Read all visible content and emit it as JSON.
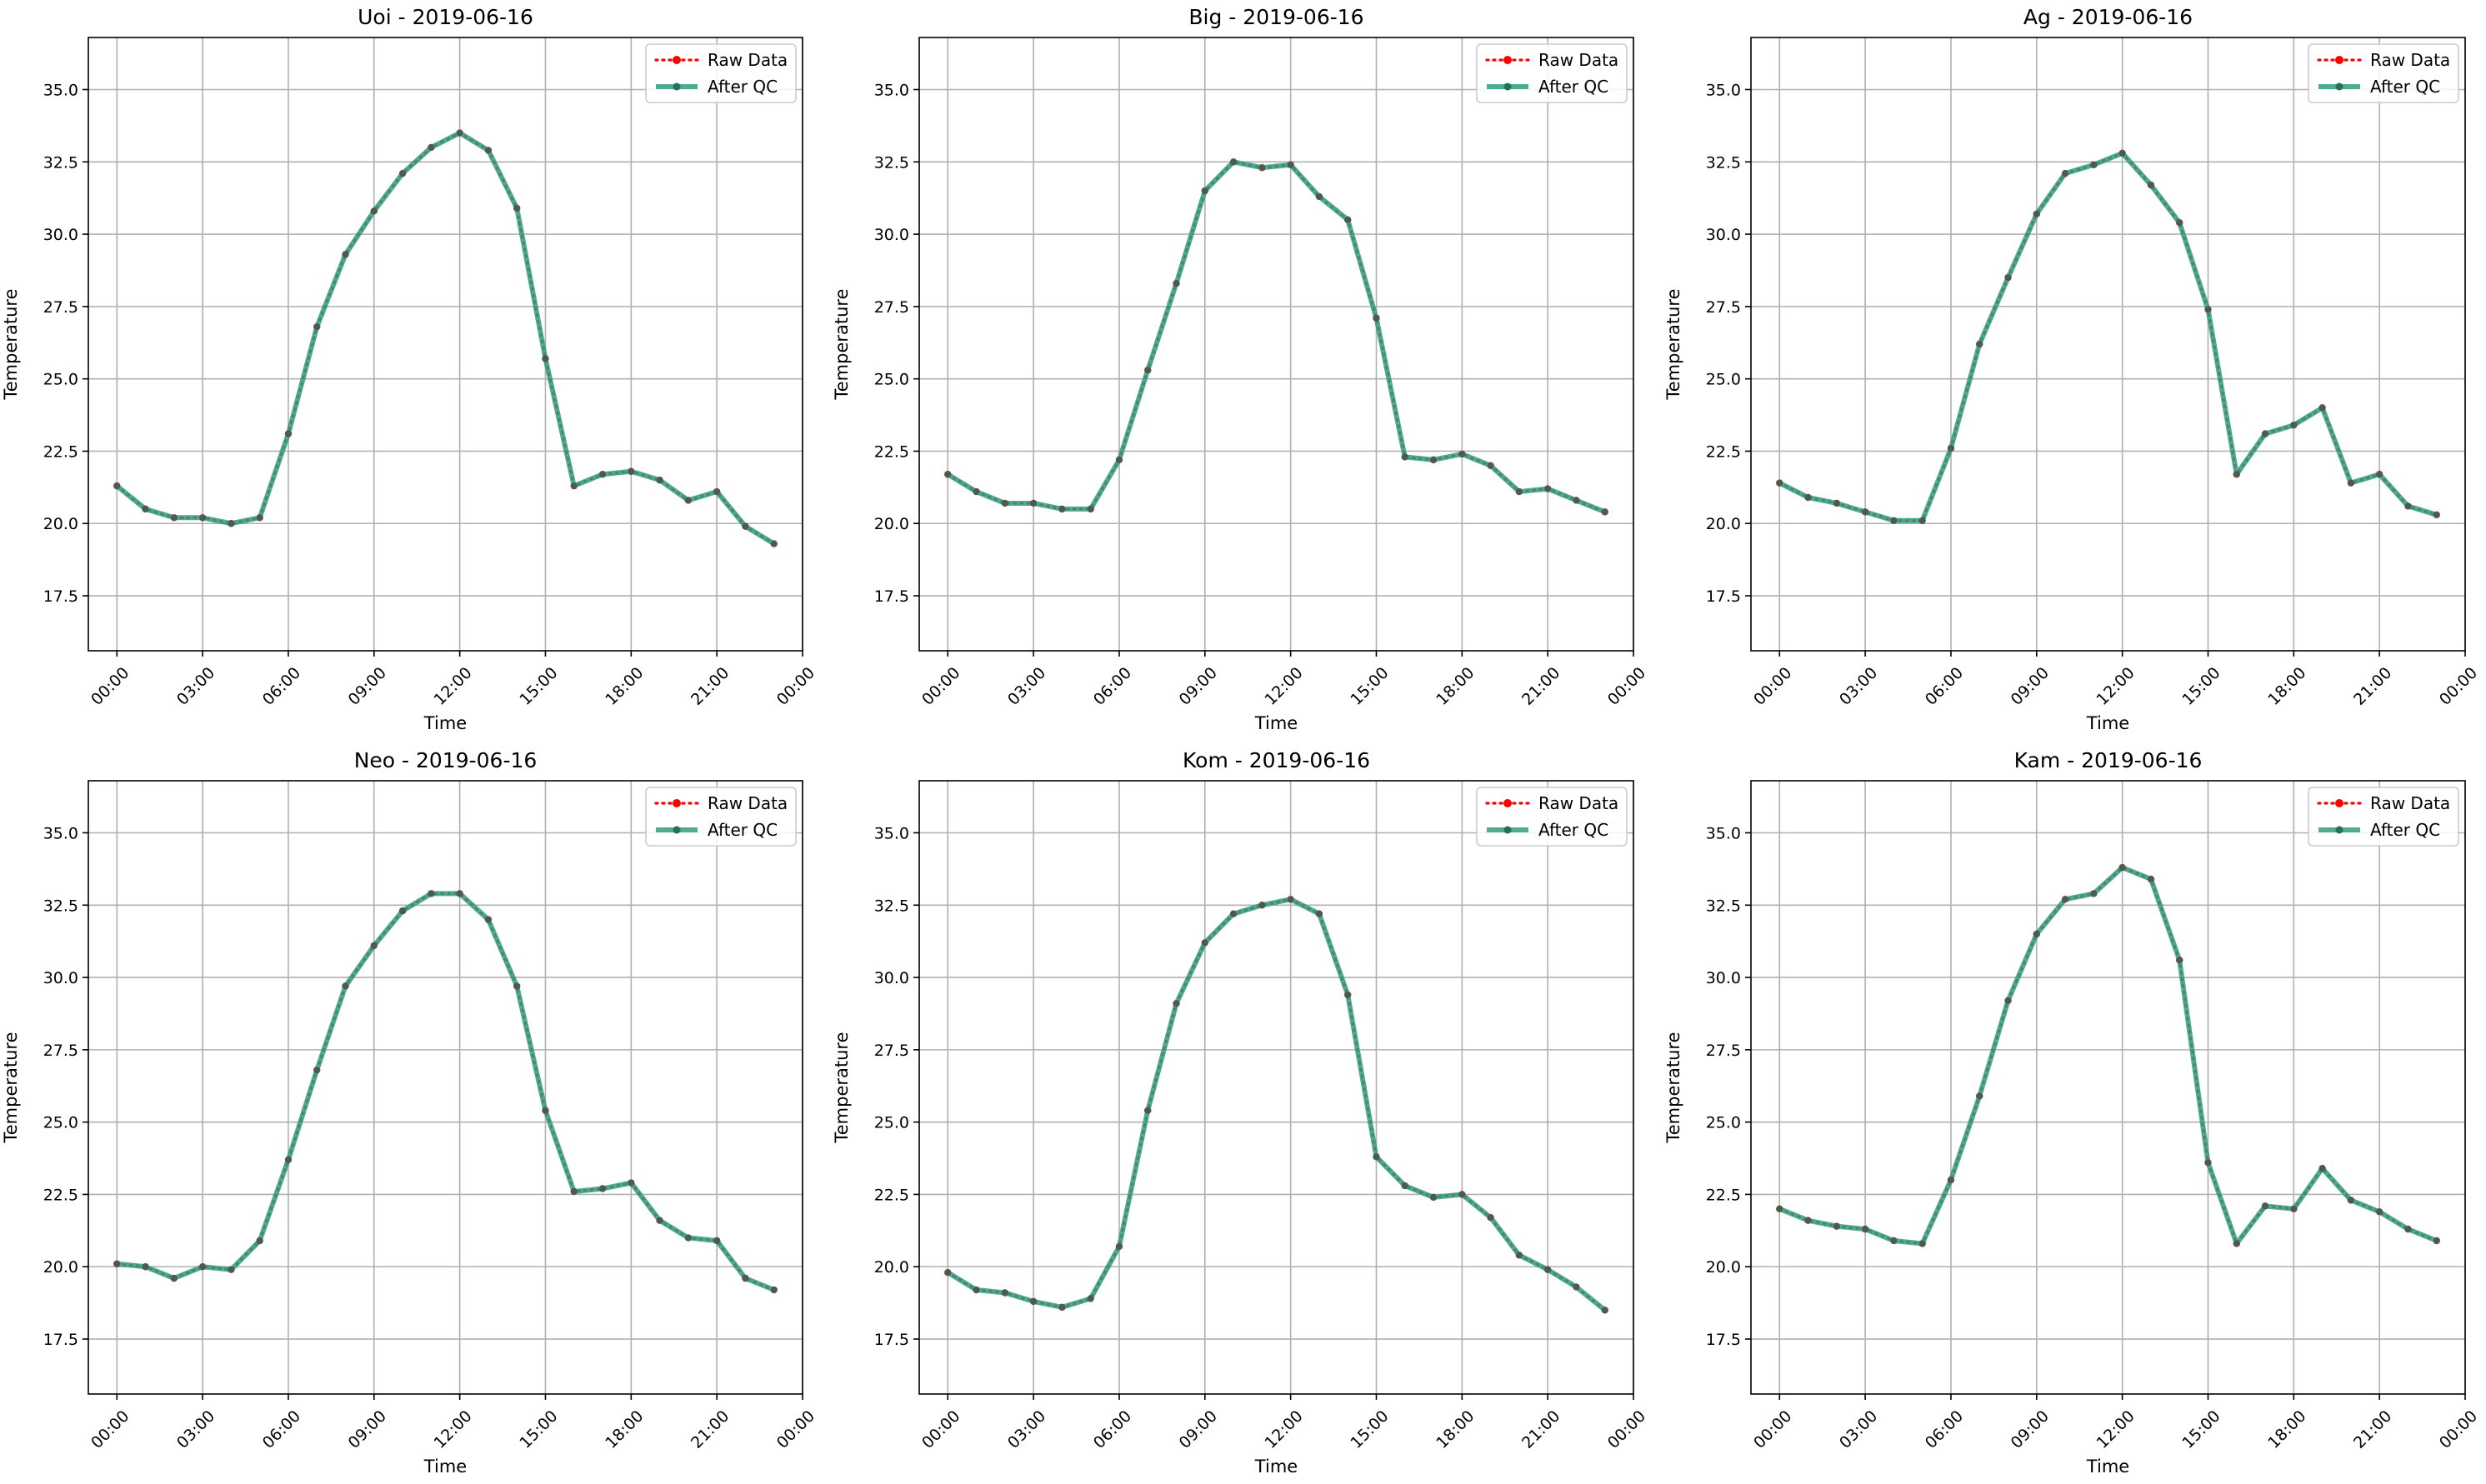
{
  "chart_data": [
    {
      "type": "line",
      "title": "Uoi - 2019-06-16",
      "xlabel": "Time",
      "ylabel": "Temperature",
      "hours": [
        0,
        1,
        2,
        3,
        4,
        5,
        6,
        7,
        8,
        9,
        10,
        11,
        12,
        13,
        14,
        15,
        16,
        17,
        18,
        19,
        20,
        21,
        22,
        23
      ],
      "xticks": [
        "00:00",
        "03:00",
        "06:00",
        "09:00",
        "12:00",
        "15:00",
        "18:00",
        "21:00",
        "00:00"
      ],
      "yticks": [
        "17.5",
        "20.0",
        "22.5",
        "25.0",
        "27.5",
        "30.0",
        "32.5",
        "35.0"
      ],
      "ylim": [
        15.6,
        36.8
      ],
      "grid": true,
      "legend_position": "top-right",
      "series": [
        {
          "name": "Raw Data",
          "color": "#ff0000",
          "values": [
            21.3,
            20.5,
            20.2,
            20.2,
            20.0,
            20.2,
            23.1,
            26.8,
            29.3,
            30.8,
            32.1,
            33.0,
            33.5,
            32.9,
            30.9,
            25.7,
            21.3,
            21.7,
            21.8,
            21.5,
            20.8,
            21.1,
            19.9,
            19.3
          ]
        },
        {
          "name": "After QC",
          "color": "#2e9e7f",
          "values": [
            21.3,
            20.5,
            20.2,
            20.2,
            20.0,
            20.2,
            23.1,
            26.8,
            29.3,
            30.8,
            32.1,
            33.0,
            33.5,
            32.9,
            30.9,
            25.7,
            21.3,
            21.7,
            21.8,
            21.5,
            20.8,
            21.1,
            19.9,
            19.3
          ]
        }
      ]
    },
    {
      "type": "line",
      "title": "Big - 2019-06-16",
      "xlabel": "Time",
      "ylabel": "Temperature",
      "hours": [
        0,
        1,
        2,
        3,
        4,
        5,
        6,
        7,
        8,
        9,
        10,
        11,
        12,
        13,
        14,
        15,
        16,
        17,
        18,
        19,
        20,
        21,
        22,
        23
      ],
      "xticks": [
        "00:00",
        "03:00",
        "06:00",
        "09:00",
        "12:00",
        "15:00",
        "18:00",
        "21:00",
        "00:00"
      ],
      "yticks": [
        "17.5",
        "20.0",
        "22.5",
        "25.0",
        "27.5",
        "30.0",
        "32.5",
        "35.0"
      ],
      "ylim": [
        15.6,
        36.8
      ],
      "grid": true,
      "legend_position": "top-right",
      "series": [
        {
          "name": "Raw Data",
          "color": "#ff0000",
          "values": [
            21.7,
            21.1,
            20.7,
            20.7,
            20.5,
            20.5,
            22.2,
            25.3,
            28.3,
            31.5,
            32.5,
            32.3,
            32.4,
            31.3,
            30.5,
            27.1,
            22.3,
            22.2,
            22.4,
            22.0,
            21.1,
            21.2,
            20.8,
            20.4
          ]
        },
        {
          "name": "After QC",
          "color": "#2e9e7f",
          "values": [
            21.7,
            21.1,
            20.7,
            20.7,
            20.5,
            20.5,
            22.2,
            25.3,
            28.3,
            31.5,
            32.5,
            32.3,
            32.4,
            31.3,
            30.5,
            27.1,
            22.3,
            22.2,
            22.4,
            22.0,
            21.1,
            21.2,
            20.8,
            20.4
          ]
        }
      ]
    },
    {
      "type": "line",
      "title": "Ag - 2019-06-16",
      "xlabel": "Time",
      "ylabel": "Temperature",
      "hours": [
        0,
        1,
        2,
        3,
        4,
        5,
        6,
        7,
        8,
        9,
        10,
        11,
        12,
        13,
        14,
        15,
        16,
        17,
        18,
        19,
        20,
        21,
        22,
        23
      ],
      "xticks": [
        "00:00",
        "03:00",
        "06:00",
        "09:00",
        "12:00",
        "15:00",
        "18:00",
        "21:00",
        "00:00"
      ],
      "yticks": [
        "17.5",
        "20.0",
        "22.5",
        "25.0",
        "27.5",
        "30.0",
        "32.5",
        "35.0"
      ],
      "ylim": [
        15.6,
        36.8
      ],
      "grid": true,
      "legend_position": "top-right",
      "series": [
        {
          "name": "Raw Data",
          "color": "#ff0000",
          "values": [
            21.4,
            20.9,
            20.7,
            20.4,
            20.1,
            20.1,
            22.6,
            26.2,
            28.5,
            30.7,
            32.1,
            32.4,
            32.8,
            31.7,
            30.4,
            27.4,
            21.7,
            23.1,
            23.4,
            24.0,
            21.4,
            21.7,
            20.6,
            20.3
          ]
        },
        {
          "name": "After QC",
          "color": "#2e9e7f",
          "values": [
            21.4,
            20.9,
            20.7,
            20.4,
            20.1,
            20.1,
            22.6,
            26.2,
            28.5,
            30.7,
            32.1,
            32.4,
            32.8,
            31.7,
            30.4,
            27.4,
            21.7,
            23.1,
            23.4,
            24.0,
            21.4,
            21.7,
            20.6,
            20.3
          ]
        }
      ]
    },
    {
      "type": "line",
      "title": "Neo - 2019-06-16",
      "xlabel": "Time",
      "ylabel": "Temperature",
      "hours": [
        0,
        1,
        2,
        3,
        4,
        5,
        6,
        7,
        8,
        9,
        10,
        11,
        12,
        13,
        14,
        15,
        16,
        17,
        18,
        19,
        20,
        21,
        22,
        23
      ],
      "xticks": [
        "00:00",
        "03:00",
        "06:00",
        "09:00",
        "12:00",
        "15:00",
        "18:00",
        "21:00",
        "00:00"
      ],
      "yticks": [
        "17.5",
        "20.0",
        "22.5",
        "25.0",
        "27.5",
        "30.0",
        "32.5",
        "35.0"
      ],
      "ylim": [
        15.6,
        36.8
      ],
      "grid": true,
      "legend_position": "top-right",
      "series": [
        {
          "name": "Raw Data",
          "color": "#ff0000",
          "values": [
            20.1,
            20.0,
            19.6,
            20.0,
            19.9,
            20.9,
            23.7,
            26.8,
            29.7,
            31.1,
            32.3,
            32.9,
            32.9,
            32.0,
            29.7,
            25.4,
            22.6,
            22.7,
            22.9,
            21.6,
            21.0,
            20.9,
            19.6,
            19.2
          ]
        },
        {
          "name": "After QC",
          "color": "#2e9e7f",
          "values": [
            20.1,
            20.0,
            19.6,
            20.0,
            19.9,
            20.9,
            23.7,
            26.8,
            29.7,
            31.1,
            32.3,
            32.9,
            32.9,
            32.0,
            29.7,
            25.4,
            22.6,
            22.7,
            22.9,
            21.6,
            21.0,
            20.9,
            19.6,
            19.2
          ]
        }
      ]
    },
    {
      "type": "line",
      "title": "Kom - 2019-06-16",
      "xlabel": "Time",
      "ylabel": "Temperature",
      "hours": [
        0,
        1,
        2,
        3,
        4,
        5,
        6,
        7,
        8,
        9,
        10,
        11,
        12,
        13,
        14,
        15,
        16,
        17,
        18,
        19,
        20,
        21,
        22,
        23
      ],
      "xticks": [
        "00:00",
        "03:00",
        "06:00",
        "09:00",
        "12:00",
        "15:00",
        "18:00",
        "21:00",
        "00:00"
      ],
      "yticks": [
        "17.5",
        "20.0",
        "22.5",
        "25.0",
        "27.5",
        "30.0",
        "32.5",
        "35.0"
      ],
      "ylim": [
        15.6,
        36.8
      ],
      "grid": true,
      "legend_position": "top-right",
      "series": [
        {
          "name": "Raw Data",
          "color": "#ff0000",
          "values": [
            19.8,
            19.2,
            19.1,
            18.8,
            18.6,
            18.9,
            20.7,
            25.4,
            29.1,
            31.2,
            32.2,
            32.5,
            32.7,
            32.2,
            29.4,
            23.8,
            22.8,
            22.4,
            22.5,
            21.7,
            20.4,
            19.9,
            19.3,
            18.5
          ]
        },
        {
          "name": "After QC",
          "color": "#2e9e7f",
          "values": [
            19.8,
            19.2,
            19.1,
            18.8,
            18.6,
            18.9,
            20.7,
            25.4,
            29.1,
            31.2,
            32.2,
            32.5,
            32.7,
            32.2,
            29.4,
            23.8,
            22.8,
            22.4,
            22.5,
            21.7,
            20.4,
            19.9,
            19.3,
            18.5
          ]
        }
      ]
    },
    {
      "type": "line",
      "title": "Kam - 2019-06-16",
      "xlabel": "Time",
      "ylabel": "Temperature",
      "hours": [
        0,
        1,
        2,
        3,
        4,
        5,
        6,
        7,
        8,
        9,
        10,
        11,
        12,
        13,
        14,
        15,
        16,
        17,
        18,
        19,
        20,
        21,
        22,
        23
      ],
      "xticks": [
        "00:00",
        "03:00",
        "06:00",
        "09:00",
        "12:00",
        "15:00",
        "18:00",
        "21:00",
        "00:00"
      ],
      "yticks": [
        "17.5",
        "20.0",
        "22.5",
        "25.0",
        "27.5",
        "30.0",
        "32.5",
        "35.0"
      ],
      "ylim": [
        15.6,
        36.8
      ],
      "grid": true,
      "legend_position": "top-right",
      "series": [
        {
          "name": "Raw Data",
          "color": "#ff0000",
          "values": [
            22.0,
            21.6,
            21.4,
            21.3,
            20.9,
            20.8,
            23.0,
            25.9,
            29.2,
            31.5,
            32.7,
            32.9,
            33.8,
            33.4,
            30.6,
            23.6,
            20.8,
            22.1,
            22.0,
            23.4,
            22.3,
            21.9,
            21.3,
            20.9
          ]
        },
        {
          "name": "After QC",
          "color": "#2e9e7f",
          "values": [
            22.0,
            21.6,
            21.4,
            21.3,
            20.9,
            20.8,
            23.0,
            25.9,
            29.2,
            31.5,
            32.7,
            32.9,
            33.8,
            33.4,
            30.6,
            23.6,
            20.8,
            22.1,
            22.0,
            23.4,
            22.3,
            21.9,
            21.3,
            20.9
          ]
        }
      ]
    }
  ]
}
